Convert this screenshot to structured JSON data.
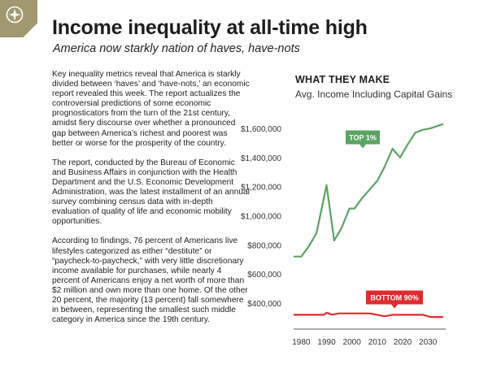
{
  "header": {
    "headline": "Income inequality at all-time high",
    "subheadline": "America now starkly nation of haves, have-nots",
    "badge_icon": "compass-star-icon",
    "badge_color": "#a09870"
  },
  "article": {
    "paragraphs": [
      "Key inequality metrics reveal that America is starkly divided between ‘haves’ and ‘have-nots,’ an economic report revealed this week. The report actualizes the controversial predictions of some economic prognosticators from the turn of the 21st century, amidst fiery discourse over whether a pronounced gap between America’s richest and poorest was better or worse for the prosperity of the country.",
      "The report, conducted by the Bureau of Economic and Business Affairs in conjunction with the Health Department and the U.S. Economic Development Administration, was the latest installment of an annual survey combining census data with in-depth evaluation of quality of life and economic mobility opportunities.",
      "According to findings, 76 percent of Americans live lifestyles categorized as either “destitute” or “paycheck-to-paycheck,” with very little discretionary income available for purchases, while nearly 4 percent of Americans enjoy a net worth of more than $2 million and own more than one home. Of the other 20 percent, the majority (13 percent) fall somewhere in between, representing the smallest such middle category in America since the 19th century."
    ]
  },
  "chart_data": {
    "type": "line",
    "title": "WHAT THEY MAKE",
    "subtitle": "Avg. Income Including Capital Gains",
    "xlabel": "",
    "ylabel": "",
    "xlim": [
      1977,
      2037
    ],
    "ylim": [
      250000,
      1700000
    ],
    "x_ticks": [
      1980,
      1990,
      2000,
      2010,
      2020,
      2030
    ],
    "x_tick_labels": [
      "1980",
      "1990",
      "2000",
      "2010",
      "2020",
      "2030"
    ],
    "y_ticks": [
      400000,
      600000,
      800000,
      1000000,
      1200000,
      1400000,
      1600000
    ],
    "y_tick_labels": [
      "$400,000",
      "$600,000",
      "$800,000",
      "$1,000,000",
      "$1,200,000",
      "$1,400,000",
      "$1,600,000"
    ],
    "grid": false,
    "series": [
      {
        "name": "TOP 1%",
        "color": "#5ba363",
        "x": [
          1977,
          1980,
          1983,
          1986,
          1990,
          1993,
          1996,
          1999,
          2001,
          2004,
          2007,
          2010,
          2013,
          2016,
          2019,
          2022,
          2025,
          2028,
          2031,
          2036
        ],
        "values": [
          720000,
          720000,
          790000,
          880000,
          1210000,
          830000,
          920000,
          1050000,
          1050000,
          1120000,
          1180000,
          1240000,
          1340000,
          1460000,
          1400000,
          1490000,
          1570000,
          1590000,
          1600000,
          1630000
        ]
      },
      {
        "name": "BOTTOM 90%",
        "color": "#e02b2e",
        "x": [
          1977,
          1980,
          1983,
          1986,
          1989,
          1990,
          1992,
          1995,
          1998,
          2001,
          2004,
          2007,
          2010,
          2013,
          2016,
          2019,
          2022,
          2025,
          2028,
          2031,
          2036
        ],
        "values": [
          320000,
          320000,
          320000,
          320000,
          320000,
          335000,
          322000,
          330000,
          330000,
          330000,
          330000,
          330000,
          320000,
          310000,
          320000,
          320000,
          320000,
          320000,
          320000,
          305000,
          305000
        ]
      }
    ],
    "annotations": [
      {
        "text": "TOP 1%",
        "series": 0,
        "color": "#5ba363"
      },
      {
        "text": "BOTTOM 90%",
        "series": 1,
        "color": "#e02b2e"
      }
    ]
  }
}
